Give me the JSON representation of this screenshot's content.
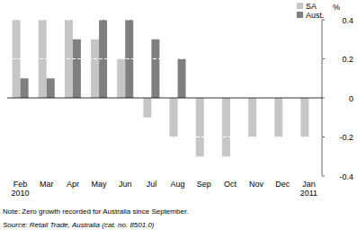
{
  "chart_data": {
    "type": "bar",
    "y_label": "%",
    "categories": [
      "Feb 2010",
      "Mar",
      "Apr",
      "May",
      "Jun",
      "Jul",
      "Aug",
      "Sep",
      "Oct",
      "Nov",
      "Dec",
      "Jan 2011"
    ],
    "series": [
      {
        "name": "SA",
        "color": "#c6c6c6",
        "values": [
          0.4,
          0.4,
          0.4,
          0.3,
          0.2,
          -0.1,
          -0.2,
          -0.3,
          -0.3,
          -0.2,
          -0.2,
          -0.2
        ]
      },
      {
        "name": "Aust.",
        "color": "#7f7f7f",
        "values": [
          0.1,
          0.1,
          0.3,
          0.4,
          0.4,
          0.3,
          0.2,
          0,
          0,
          0,
          0,
          0
        ]
      }
    ],
    "ylim": [
      -0.4,
      0.4
    ],
    "yticks": [
      -0.4,
      -0.2,
      0,
      0.2,
      0.4
    ],
    "grid": true,
    "legend": "top-right",
    "annotations": [
      "Note: Zero growth recorded for Australia since September.",
      "Source: Retail Trade, Australia (cat. no. 8501.0)"
    ]
  }
}
